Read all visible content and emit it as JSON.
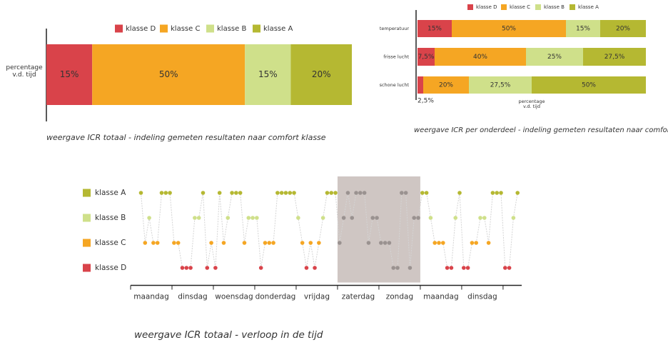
{
  "chart_data": [
    {
      "type": "bar",
      "orientation": "horizontal",
      "stacked": true,
      "categories": [
        null
      ],
      "ylabel": "percentage v.d. tijd",
      "series": [
        {
          "name": "klasse D",
          "color": "#d9434a",
          "values": [
            15
          ],
          "value_labels": [
            "15%"
          ]
        },
        {
          "name": "klasse C",
          "color": "#f5a623",
          "values": [
            50
          ],
          "value_labels": [
            "50%"
          ]
        },
        {
          "name": "klasse B",
          "color": "#cfe08a",
          "values": [
            15
          ],
          "value_labels": [
            "15%"
          ]
        },
        {
          "name": "klasse A",
          "color": "#b5b832",
          "values": [
            20
          ],
          "value_labels": [
            "20%"
          ]
        }
      ],
      "xlim": [
        0,
        100
      ],
      "caption": "weergave ICR totaal - indeling gemeten resultaten naar comfort klasse"
    },
    {
      "type": "bar",
      "orientation": "horizontal",
      "stacked": true,
      "categories": [
        "temperatuur",
        "frisse lucht",
        "schone lucht"
      ],
      "xlabel": "percentage v.d. tijd",
      "series": [
        {
          "name": "klasse D",
          "color": "#d9434a",
          "values": [
            15,
            7.5,
            2.5
          ],
          "value_labels": [
            "15%",
            "7,5%",
            "2,5%"
          ]
        },
        {
          "name": "klasse C",
          "color": "#f5a623",
          "values": [
            50,
            40,
            20
          ],
          "value_labels": [
            "50%",
            "40%",
            "20%"
          ]
        },
        {
          "name": "klasse B",
          "color": "#cfe08a",
          "values": [
            15,
            25,
            27.5
          ],
          "value_labels": [
            "15%",
            "25%",
            "27,5%"
          ]
        },
        {
          "name": "klasse A",
          "color": "#b5b832",
          "values": [
            20,
            27.5,
            50
          ],
          "value_labels": [
            "20%",
            "27,5%",
            "50%"
          ]
        }
      ],
      "xlim": [
        0,
        100
      ],
      "caption": "weergave ICR per onderdeel - indeling gemeten resultaten naar comfort klasse"
    },
    {
      "type": "scatter",
      "connect": true,
      "categories": [
        "maandag",
        "dinsdag",
        "woensdag",
        "donderdag",
        "vrijdag",
        "zaterdag",
        "zondag",
        "maandag",
        "dinsdag"
      ],
      "xlim": [
        0,
        9.45
      ],
      "xticks": [
        0,
        1,
        2,
        3,
        4,
        5,
        6,
        7,
        8,
        9
      ],
      "ylim": [
        0.3,
        4.6
      ],
      "yticks": [
        {
          "value": 4,
          "label": "klasse A"
        },
        {
          "value": 3,
          "label": "klasse B"
        },
        {
          "value": 2,
          "label": "klasse C"
        },
        {
          "value": 1,
          "label": "klasse D"
        }
      ],
      "level_colors": [
        "#d9434a",
        "#f5a623",
        "#cfe08a",
        "#b5b832"
      ],
      "highlight": [
        5,
        7
      ],
      "highlight_color": "#cfc6c3",
      "highlight_point_color": "#9a9290",
      "line_color": "#d4d4d4",
      "x": [
        0.25,
        0.35,
        0.45,
        0.55,
        0.65,
        0.75,
        0.85,
        0.95,
        1.05,
        1.15,
        1.25,
        1.35,
        1.45,
        1.55,
        1.65,
        1.75,
        1.85,
        1.95,
        2.05,
        2.15,
        2.25,
        2.35,
        2.45,
        2.55,
        2.65,
        2.75,
        2.85,
        2.95,
        3.05,
        3.15,
        3.25,
        3.35,
        3.45,
        3.55,
        3.65,
        3.75,
        3.85,
        3.95,
        4.05,
        4.15,
        4.25,
        4.35,
        4.45,
        4.55,
        4.65,
        4.75,
        4.85,
        4.95,
        5.05,
        5.15,
        5.25,
        5.35,
        5.45,
        5.55,
        5.65,
        5.75,
        5.85,
        5.95,
        6.05,
        6.15,
        6.25,
        6.35,
        6.45,
        6.55,
        6.65,
        6.75,
        6.85,
        6.95,
        7.05,
        7.15,
        7.25,
        7.35,
        7.45,
        7.55,
        7.65,
        7.75,
        7.85,
        7.95,
        8.05,
        8.15,
        8.25,
        8.35,
        8.45,
        8.55,
        8.65,
        8.75,
        8.85,
        8.95,
        9.05,
        9.15,
        9.25,
        9.35
      ],
      "values": [
        4,
        2,
        3,
        2,
        2,
        4,
        4,
        4,
        2,
        2,
        1,
        1,
        1,
        3,
        3,
        4,
        1,
        2,
        1,
        4,
        2,
        3,
        4,
        4,
        4,
        2,
        3,
        3,
        3,
        1,
        2,
        2,
        2,
        4,
        4,
        4,
        4,
        4,
        3,
        2,
        1,
        2,
        1,
        2,
        3,
        4,
        4,
        4,
        2,
        3,
        4,
        3,
        4,
        4,
        4,
        2,
        3,
        3,
        2,
        2,
        2,
        1,
        1,
        4,
        4,
        1,
        3,
        3,
        4,
        4,
        3,
        2,
        2,
        2,
        1,
        1,
        3,
        4,
        1,
        1,
        2,
        2,
        3,
        3,
        2,
        4,
        4,
        4,
        1,
        1,
        3,
        4
      ],
      "caption": "weergave ICR totaal - verloop in de tijd"
    }
  ]
}
